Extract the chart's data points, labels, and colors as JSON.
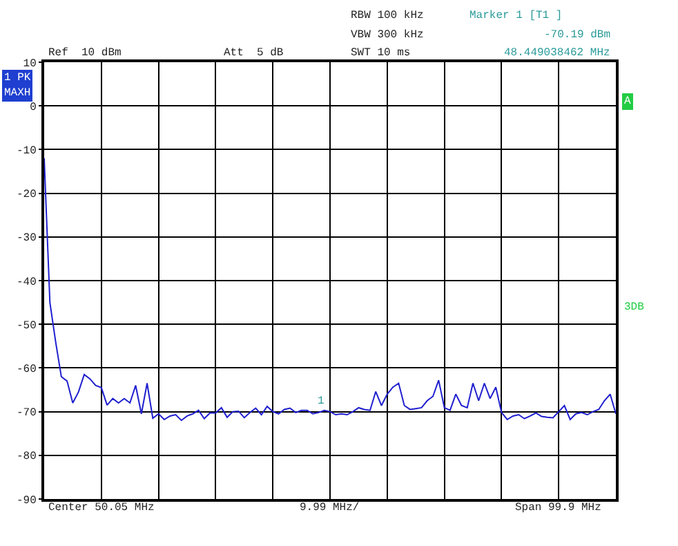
{
  "chart_data": {
    "type": "line",
    "categories": [
      null,
      null,
      null,
      null,
      null,
      null,
      null,
      null,
      null,
      null,
      null,
      null,
      null,
      null,
      null,
      null,
      null,
      null,
      null,
      null,
      null,
      null,
      null,
      null,
      null,
      null,
      null,
      null,
      null,
      null,
      null,
      null,
      null,
      null,
      null,
      null,
      null,
      null,
      null,
      null,
      null,
      null,
      null,
      null,
      null,
      null,
      null,
      null,
      null,
      null,
      null,
      null,
      null,
      null,
      null,
      null,
      null,
      null,
      null,
      null,
      null,
      null,
      null,
      null,
      null,
      null,
      null,
      null,
      null,
      null,
      null,
      null,
      null,
      null,
      null,
      null,
      null,
      null,
      null,
      null,
      null,
      null,
      null,
      null,
      null,
      null,
      null,
      null,
      null,
      null,
      null,
      null,
      null,
      null,
      null,
      null,
      null,
      null,
      null,
      null,
      null
    ],
    "series": [
      {
        "color": "#1f1fcf",
        "values": [
          -12,
          -45,
          -54,
          -62,
          -63,
          -68,
          -65.5,
          -61.5,
          -62.5,
          -64,
          -64.5,
          -68.5,
          -67,
          -68,
          -67,
          -68,
          -64,
          -70.5,
          -63.5,
          -71.5,
          -70.5,
          -71.8,
          -71,
          -70.7,
          -72,
          -71,
          -70.5,
          -69.7,
          -71.6,
          -70.3,
          -70.3,
          -69.1,
          -71.3,
          -70,
          -69.9,
          -71.4,
          -70.2,
          -69.2,
          -70.7,
          -68.8,
          -70,
          -70.5,
          -69.5,
          -69.2,
          -70.2,
          -69.7,
          -69.7,
          -70.5,
          -70.2,
          -69.7,
          -70,
          -70.7,
          -70.5,
          -70.7,
          -70,
          -69.1,
          -69.5,
          -69.7,
          -65.4,
          -68.6,
          -66,
          -64.4,
          -63.5,
          -68.6,
          -69.5,
          -69.3,
          -69.1,
          -67.5,
          -66.5,
          -62.8,
          -69.1,
          -69.7,
          -66,
          -68.6,
          -69.1,
          -63.5,
          -67.5,
          -63.5,
          -67,
          -64.4,
          -70.2,
          -71.8,
          -71,
          -70.7,
          -71.6,
          -71,
          -70.3,
          -71.1,
          -71.3,
          -71.4,
          -70,
          -68.6,
          -71.8,
          -70.5,
          -70.2,
          -70.7,
          -70,
          -69.5,
          -67.5,
          -66,
          -70.5
        ]
      }
    ],
    "ylim": [
      -90,
      10
    ],
    "yticks": [
      10,
      0,
      -10,
      -20,
      -30,
      -40,
      -50,
      -60,
      -70,
      -80,
      -90
    ],
    "grid": true,
    "line_style": "solid",
    "annotations": [
      "Ref  10 dBm",
      "Att  5 dB",
      "RBW 100 kHz",
      "VBW 300 kHz",
      "SWT 10 ms",
      "Marker 1 [T1 ]",
      "-70.19 dBm",
      "48.449038462 MHz",
      "1 PK",
      "MAXH",
      "A",
      "3DB",
      "Center 50.05 MHz",
      "9.99 MHz/",
      "Span 99.9 MHz",
      "1"
    ]
  }
}
